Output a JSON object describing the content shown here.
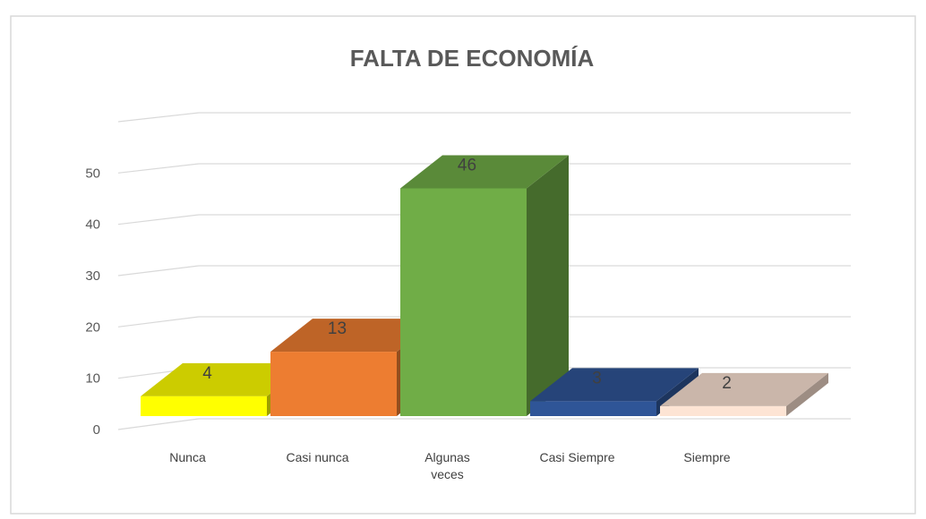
{
  "chart_data": {
    "type": "bar3d",
    "title": "FALTA DE ECONOMÍA",
    "categories": [
      "Nunca",
      "Casi nunca",
      "Algunas veces",
      "Casi Siempre",
      "Siempre"
    ],
    "values": [
      4,
      13,
      46,
      3,
      2
    ],
    "colors": [
      "#ffff00",
      "#ed7d31",
      "#70ad47",
      "#2f5597",
      "#fde4d4"
    ],
    "ylim": [
      0,
      60
    ],
    "yticks": [
      0,
      10,
      20,
      30,
      40,
      50
    ],
    "grid": true
  }
}
